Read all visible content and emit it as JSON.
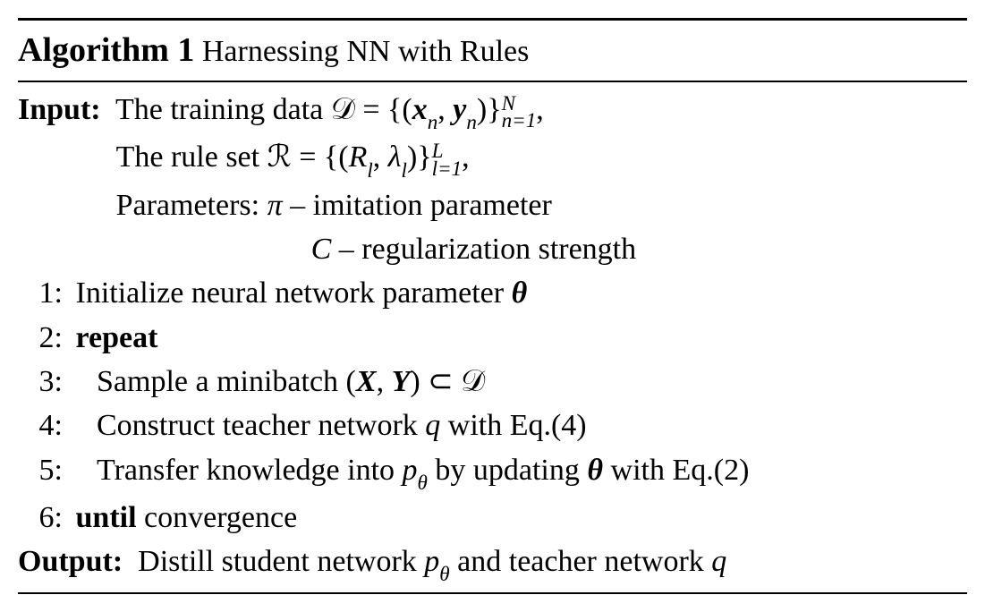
{
  "algorithm": {
    "number": "Algorithm 1",
    "title": "Harnessing NN with Rules"
  },
  "input": {
    "label": "Input:",
    "training_data": {
      "prefix": "  The training data ",
      "symbol": "𝒟",
      "equals": " = {(",
      "x": "x",
      "x_sub": "n",
      "comma1": ", ",
      "y": "y",
      "y_sub": "n",
      "close": ")}",
      "upper": "N",
      "lower": "n=1",
      "comma_end": ","
    },
    "rule_set": {
      "prefix": "The rule set ",
      "symbol": "ℛ",
      "equals": " = {(",
      "R": "R",
      "R_sub": "l",
      "comma1": ", ",
      "lambda": "λ",
      "lambda_sub": "l",
      "close": ")}",
      "upper": "L",
      "lower": "l=1",
      "comma_end": ","
    },
    "params_label": "Parameters: ",
    "param1": {
      "symbol": "π",
      "desc": " – imitation parameter"
    },
    "param2": {
      "symbol": "C",
      "desc": " – regularization strength"
    }
  },
  "steps": {
    "s1": {
      "no": "1:",
      "text": " Initialize neural network parameter ",
      "theta": "θ"
    },
    "s2": {
      "no": "2:",
      "kw": " repeat"
    },
    "s3": {
      "no": "3:",
      "text": "Sample a minibatch (",
      "X": "X",
      "comma": ", ",
      "Y": "Y",
      "subset": ") ⊂ ",
      "D": "𝒟"
    },
    "s4": {
      "no": "4:",
      "text": "Construct teacher network ",
      "q": "q",
      "rest": " with Eq.(4)"
    },
    "s5": {
      "no": "5:",
      "text": "Transfer knowledge into ",
      "p": "p",
      "psub": "θ",
      "mid": " by updating ",
      "theta": "θ",
      "rest": " with Eq.(2)"
    },
    "s6": {
      "no": "6:",
      "kw": " until",
      "cond": " convergence"
    }
  },
  "output": {
    "label": "Output:",
    "text": "  Distill student network ",
    "p": "p",
    "psub": "θ",
    "mid": " and teacher network ",
    "q": "q"
  }
}
